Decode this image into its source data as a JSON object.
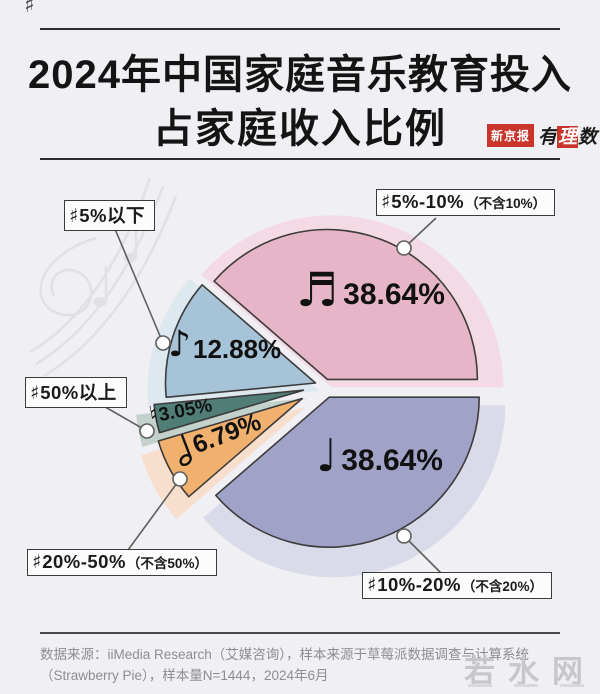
{
  "page": {
    "bg": "#f0eff3"
  },
  "decor": {
    "corner_sharp": "♯"
  },
  "header": {
    "title_line1": "2024年中国家庭音乐教育投入",
    "title_line2": "占家庭收入比例",
    "logo_boxed": "新京报",
    "logo_script1": "有",
    "logo_script2": "理",
    "logo_script3": "数"
  },
  "chart_data": {
    "type": "pie",
    "title": "2024年中国家庭音乐教育投入占家庭收入比例",
    "unit": "%",
    "start_angle_deg": 0,
    "direction": "counterclockwise",
    "center": [
      325,
      386
    ],
    "radius": 150,
    "halo_radius": 172,
    "halo_shift": [
      4,
      8
    ],
    "stroke_color": "#3c3c3c",
    "slices": [
      {
        "id": "5-10",
        "label": "5%-10%（不含10%）",
        "value": 38.64,
        "display": "38.64%",
        "color": "#e7b5c8",
        "halo": "#f3dae4",
        "explode": 7,
        "icon": "beamed-sixteenth-notes",
        "icon_char": "♬"
      },
      {
        "id": "under-5",
        "label": "5%以下",
        "value": 12.88,
        "display": "12.88%",
        "color": "#a6c3d7",
        "halo": "#dde8ef",
        "explode": 10,
        "icon": "eighth-note",
        "icon_char": "♪"
      },
      {
        "id": "over-50",
        "label": "50%以上",
        "value": 3.05,
        "display": "3.05%",
        "color": "#507e76",
        "halo": "#c2d1cb",
        "explode": 22,
        "icon": "natural-sign",
        "icon_char": "♮"
      },
      {
        "id": "20-50",
        "label": "20%-50%（不含50%）",
        "value": 6.79,
        "display": "6.79%",
        "color": "#f0b06e",
        "halo": "#f8decd",
        "explode": 26,
        "icon": "half-note",
        "icon_char": ""
      },
      {
        "id": "10-20",
        "label": "10%-20%（不含20%）",
        "value": 38.64,
        "display": "38.64%",
        "color": "#a0a3c7",
        "halo": "#dadbe9",
        "explode": 12,
        "icon": "quarter-note",
        "icon_char": "♩"
      }
    ]
  },
  "callouts": [
    {
      "prefix": "♯",
      "text": "5%以下",
      "paren": ""
    },
    {
      "prefix": "♯",
      "text": "5%-10%",
      "paren": "（不含10%）"
    },
    {
      "prefix": "♯",
      "text": "50%以上",
      "paren": ""
    },
    {
      "prefix": "♯",
      "text": "20%-50%",
      "paren": "（不含50%）"
    },
    {
      "prefix": "♯",
      "text": "10%-20%",
      "paren": "（不含20%）"
    }
  ],
  "footer": {
    "line1": "数据来源：iiMedia Research（艾媒咨询），样本来源于草莓派数据调查与计算系统",
    "line2": "（Strawberry Pie），样本量N=1444，2024年6月",
    "watermark": "若水网"
  }
}
